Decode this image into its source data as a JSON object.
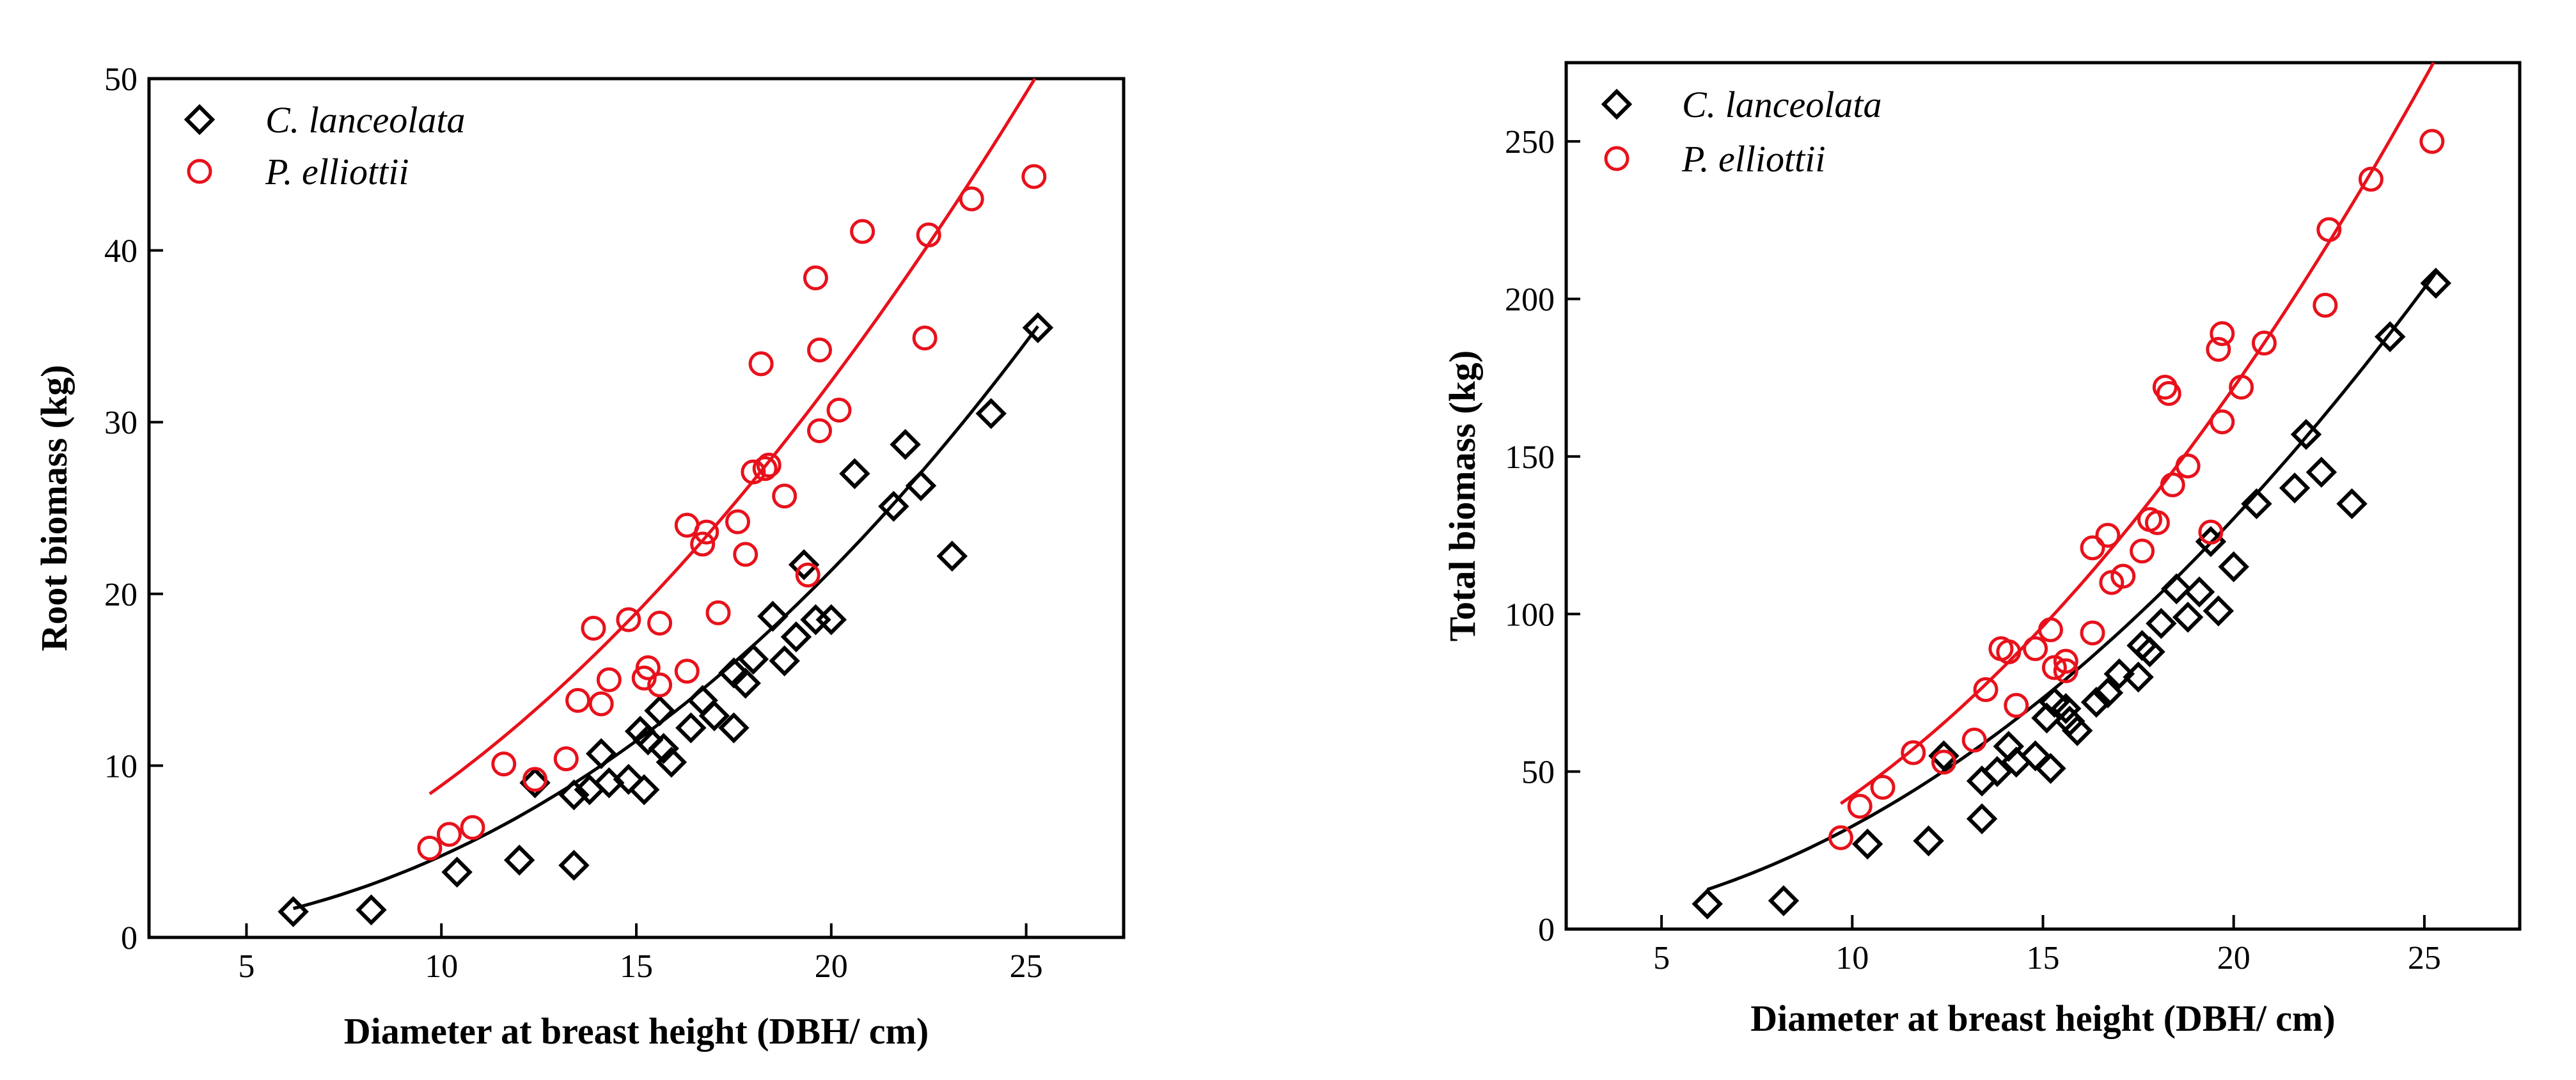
{
  "chart_data": [
    {
      "type": "scatter",
      "id": "root",
      "xlabel": "Diameter at breast height (DBH/ cm)",
      "ylabel": "Root biomass (kg)",
      "xlim": [
        2.5,
        27.5
      ],
      "ylim": [
        0,
        50
      ],
      "xticks": [
        5,
        10,
        15,
        20,
        25
      ],
      "yticks": [
        0,
        10,
        20,
        30,
        40,
        50
      ],
      "legend_position": "top-left",
      "series": [
        {
          "name": "C. lanceolata",
          "marker": "diamond",
          "color": "#000000",
          "points": [
            [
              6.2,
              1.5
            ],
            [
              8.2,
              1.6
            ],
            [
              10.4,
              3.8
            ],
            [
              12.0,
              4.5
            ],
            [
              12.4,
              9.0
            ],
            [
              13.4,
              4.2
            ],
            [
              13.4,
              8.3
            ],
            [
              13.8,
              8.6
            ],
            [
              14.1,
              10.7
            ],
            [
              14.3,
              9.0
            ],
            [
              14.8,
              9.2
            ],
            [
              15.1,
              12.0
            ],
            [
              15.2,
              8.6
            ],
            [
              15.3,
              11.5
            ],
            [
              15.6,
              13.2
            ],
            [
              15.7,
              11.0
            ],
            [
              15.9,
              10.2
            ],
            [
              16.4,
              12.2
            ],
            [
              16.7,
              13.8
            ],
            [
              17.0,
              12.9
            ],
            [
              17.5,
              12.2
            ],
            [
              17.5,
              15.4
            ],
            [
              17.8,
              14.8
            ],
            [
              18.0,
              16.2
            ],
            [
              18.5,
              18.7
            ],
            [
              18.8,
              16.1
            ],
            [
              19.1,
              17.5
            ],
            [
              19.3,
              21.7
            ],
            [
              19.6,
              18.5
            ],
            [
              20.0,
              18.5
            ],
            [
              20.6,
              27.0
            ],
            [
              21.6,
              25.1
            ],
            [
              21.9,
              28.7
            ],
            [
              22.3,
              26.3
            ],
            [
              23.1,
              22.2
            ],
            [
              24.1,
              30.5
            ],
            [
              25.3,
              35.5
            ]
          ]
        },
        {
          "name": "P. elliottii",
          "marker": "circle",
          "color": "#e8111b",
          "points": [
            [
              9.7,
              5.2
            ],
            [
              10.2,
              6.0
            ],
            [
              10.8,
              6.4
            ],
            [
              11.6,
              10.1
            ],
            [
              12.4,
              9.2
            ],
            [
              13.2,
              10.4
            ],
            [
              13.5,
              13.8
            ],
            [
              13.9,
              18.0
            ],
            [
              14.1,
              13.6
            ],
            [
              14.3,
              15.0
            ],
            [
              14.8,
              18.5
            ],
            [
              15.2,
              15.1
            ],
            [
              15.3,
              15.7
            ],
            [
              15.6,
              14.7
            ],
            [
              15.6,
              18.3
            ],
            [
              16.3,
              15.5
            ],
            [
              16.3,
              24.0
            ],
            [
              16.7,
              22.9
            ],
            [
              16.8,
              23.6
            ],
            [
              17.1,
              18.9
            ],
            [
              17.6,
              24.2
            ],
            [
              17.8,
              22.3
            ],
            [
              18.0,
              27.1
            ],
            [
              18.2,
              33.4
            ],
            [
              18.3,
              27.3
            ],
            [
              18.4,
              27.5
            ],
            [
              18.8,
              25.7
            ],
            [
              19.4,
              21.1
            ],
            [
              19.6,
              38.4
            ],
            [
              19.7,
              29.5
            ],
            [
              19.7,
              34.2
            ],
            [
              20.2,
              30.7
            ],
            [
              20.8,
              41.1
            ],
            [
              22.4,
              34.9
            ],
            [
              22.5,
              40.9
            ],
            [
              23.6,
              43.0
            ],
            [
              25.2,
              44.3
            ]
          ]
        }
      ],
      "fits": [
        {
          "name": "C. lanceolata",
          "color": "#000000",
          "x_range": [
            6.2,
            25.3
          ],
          "a": 0.0321,
          "b": 2.17
        },
        {
          "name": "P. elliottii",
          "color": "#e8111b",
          "x_range": [
            9.7,
            25.3
          ],
          "a": 0.1188,
          "b": 1.872
        }
      ]
    },
    {
      "type": "scatter",
      "id": "total",
      "xlabel": "Diameter at breast height (DBH/ cm)",
      "ylabel": "Total biomass (kg)",
      "xlim": [
        2.5,
        27.5
      ],
      "ylim": [
        0,
        275
      ],
      "xticks": [
        5,
        10,
        15,
        20,
        25
      ],
      "yticks": [
        0,
        50,
        100,
        150,
        200,
        250
      ],
      "legend_position": "top-left",
      "series": [
        {
          "name": "C. lanceolata",
          "marker": "diamond",
          "color": "#000000",
          "points": [
            [
              6.2,
              8
            ],
            [
              8.2,
              9
            ],
            [
              10.4,
              27
            ],
            [
              12.0,
              28
            ],
            [
              12.4,
              55
            ],
            [
              13.4,
              35
            ],
            [
              13.4,
              47
            ],
            [
              13.8,
              50
            ],
            [
              14.1,
              58
            ],
            [
              14.3,
              53
            ],
            [
              14.8,
              55
            ],
            [
              15.1,
              67
            ],
            [
              15.2,
              51
            ],
            [
              15.3,
              72
            ],
            [
              15.6,
              70
            ],
            [
              15.7,
              66
            ],
            [
              15.9,
              63
            ],
            [
              16.4,
              72
            ],
            [
              16.7,
              75
            ],
            [
              17.0,
              81
            ],
            [
              17.5,
              80
            ],
            [
              17.6,
              90
            ],
            [
              17.8,
              88
            ],
            [
              18.1,
              97
            ],
            [
              18.5,
              108
            ],
            [
              18.8,
              99
            ],
            [
              19.1,
              107
            ],
            [
              19.4,
              123
            ],
            [
              19.6,
              101
            ],
            [
              20.0,
              115
            ],
            [
              20.6,
              135
            ],
            [
              21.6,
              140
            ],
            [
              21.9,
              157
            ],
            [
              22.3,
              145
            ],
            [
              23.1,
              135
            ],
            [
              24.1,
              188
            ],
            [
              25.3,
              205
            ]
          ]
        },
        {
          "name": "P. elliottii",
          "marker": "circle",
          "color": "#e8111b",
          "points": [
            [
              9.7,
              29
            ],
            [
              10.2,
              39
            ],
            [
              10.8,
              45
            ],
            [
              11.6,
              56
            ],
            [
              12.4,
              53
            ],
            [
              13.2,
              60
            ],
            [
              13.5,
              76
            ],
            [
              13.9,
              89
            ],
            [
              14.1,
              88
            ],
            [
              14.3,
              71
            ],
            [
              14.8,
              89
            ],
            [
              15.2,
              95
            ],
            [
              15.3,
              83
            ],
            [
              15.6,
              82
            ],
            [
              15.6,
              85
            ],
            [
              16.3,
              94
            ],
            [
              16.3,
              121
            ],
            [
              16.7,
              125
            ],
            [
              16.8,
              110
            ],
            [
              17.1,
              112
            ],
            [
              17.6,
              120
            ],
            [
              17.8,
              130
            ],
            [
              18.0,
              129
            ],
            [
              18.2,
              172
            ],
            [
              18.3,
              170
            ],
            [
              18.4,
              141
            ],
            [
              18.8,
              147
            ],
            [
              19.4,
              126
            ],
            [
              19.6,
              184
            ],
            [
              19.7,
              189
            ],
            [
              19.7,
              161
            ],
            [
              20.2,
              172
            ],
            [
              20.8,
              186
            ],
            [
              22.4,
              198
            ],
            [
              22.5,
              222
            ],
            [
              23.6,
              238
            ],
            [
              25.2,
              250
            ]
          ]
        }
      ],
      "fits": [
        {
          "name": "C. lanceolata",
          "color": "#000000",
          "x_range": [
            6.2,
            25.3
          ],
          "a": 0.3287,
          "b": 1.997
        },
        {
          "name": "P. elliottii",
          "color": "#e8111b",
          "x_range": [
            9.7,
            25.3
          ],
          "a": 0.4047,
          "b": 2.02
        }
      ]
    }
  ]
}
